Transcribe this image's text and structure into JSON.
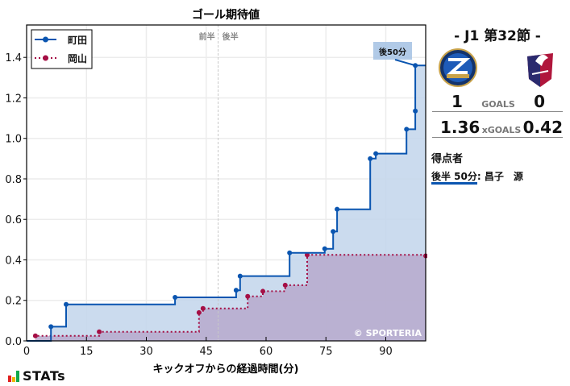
{
  "chart_data": {
    "type": "line",
    "subtype": "step-area",
    "title": "ゴール期待値",
    "xlabel": "キックオフからの経過時間(分)",
    "ylabel": "",
    "xlim": [
      0,
      100
    ],
    "ylim": [
      0,
      1.56
    ],
    "xticks": [
      0,
      15,
      30,
      45,
      60,
      75,
      90
    ],
    "yticks": [
      0.0,
      0.2,
      0.4,
      0.6,
      0.8,
      1.0,
      1.2,
      1.4
    ],
    "xtick_labels": [
      "0",
      "15",
      "30",
      "45",
      "60",
      "75",
      "90"
    ],
    "ytick_labels": [
      "0.0",
      "0.2",
      "0.4",
      "0.6",
      "0.8",
      "1.0",
      "1.2",
      "1.4"
    ],
    "grid": true,
    "legend_position": "upper left",
    "halftime_marker": {
      "x": 48,
      "left_label": "前半",
      "right_label": "後半"
    },
    "series": [
      {
        "name": "町田",
        "color": "#0a55b0",
        "fill": "#c5d7ec",
        "line_style": "solid",
        "end_minute": 100,
        "points": [
          {
            "x": 6.1,
            "y": 0.07
          },
          {
            "x": 9.9,
            "y": 0.18
          },
          {
            "x": 37.2,
            "y": 0.215
          },
          {
            "x": 52.5,
            "y": 0.25
          },
          {
            "x": 53.5,
            "y": 0.32
          },
          {
            "x": 65.9,
            "y": 0.435
          },
          {
            "x": 74.7,
            "y": 0.455
          },
          {
            "x": 76.8,
            "y": 0.54
          },
          {
            "x": 77.8,
            "y": 0.65
          },
          {
            "x": 86.1,
            "y": 0.9
          },
          {
            "x": 87.5,
            "y": 0.925
          },
          {
            "x": 95.2,
            "y": 1.045
          },
          {
            "x": 97.4,
            "y": 1.135
          },
          {
            "x": 97.4,
            "y": 1.36
          }
        ],
        "final_xg": 1.36
      },
      {
        "name": "岡山",
        "color": "#a50f45",
        "fill": "#b7a9cc",
        "line_style": "dotted",
        "end_minute": 100,
        "points": [
          {
            "x": 2.2,
            "y": 0.025
          },
          {
            "x": 18.2,
            "y": 0.045
          },
          {
            "x": 43.2,
            "y": 0.14
          },
          {
            "x": 44.2,
            "y": 0.16
          },
          {
            "x": 55.4,
            "y": 0.22
          },
          {
            "x": 59.2,
            "y": 0.245
          },
          {
            "x": 64.8,
            "y": 0.275
          },
          {
            "x": 70.3,
            "y": 0.425
          },
          {
            "x": 100,
            "y": 0.42
          }
        ],
        "final_xg": 0.42
      }
    ],
    "annotations": [
      {
        "text": "後50分",
        "x": 97.4,
        "y": 1.36,
        "series": "町田"
      },
      {
        "text": "© SPORTERIA",
        "position": "bottom-right"
      }
    ]
  },
  "match": {
    "round": "-  J1 第32節  -",
    "home_team": "町田",
    "away_team": "岡山",
    "home_logo": "zelvia-crest-icon",
    "away_logo": "fagiano-crest-icon",
    "home_goals": "1",
    "away_goals": "0",
    "goals_label": "GOALS",
    "home_xg": "1.36",
    "away_xg": "0.42",
    "xg_label": "xGOALS",
    "scorers_title": "得点者",
    "scorers": [
      {
        "time": "後半 50分",
        "name": ": 昌子　源"
      }
    ]
  },
  "footer": {
    "brand": "STATs",
    "copyright": "© SPORTERIA"
  },
  "colors": {
    "home": "#0a55b0",
    "home_fill": "#c5d7ec",
    "away": "#a50f45",
    "away_fill": "#b7a9cc",
    "annotation_box": "#a9c4e4"
  }
}
